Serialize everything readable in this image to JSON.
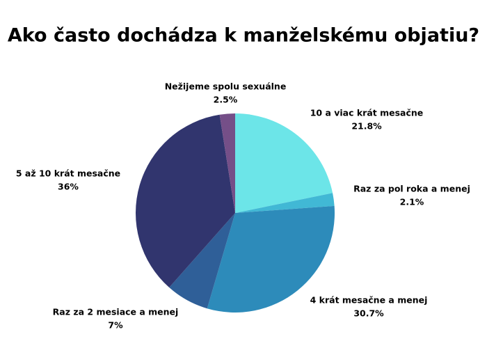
{
  "chart_data": {
    "type": "pie",
    "title": "Ako často dochádza k manželskému objatiu?",
    "categories": [
      "10 a viac krát mesačne",
      "Raz za pol roka a menej",
      "4 krát mesačne a menej",
      "Raz za 2 mesiace a menej",
      "5 až 10 krát mesačne",
      "Nežijeme spolu sexuálne"
    ],
    "values": [
      21.8,
      2.1,
      30.7,
      7,
      36,
      2.5
    ],
    "value_labels": [
      "21.8%",
      "2.1%",
      "30.7%",
      "7%",
      "36%",
      "2.5%"
    ],
    "colors": [
      "#6ce5e8",
      "#41b8d5",
      "#2d8bba",
      "#2f5f98",
      "#31356e",
      "#754f88"
    ]
  }
}
